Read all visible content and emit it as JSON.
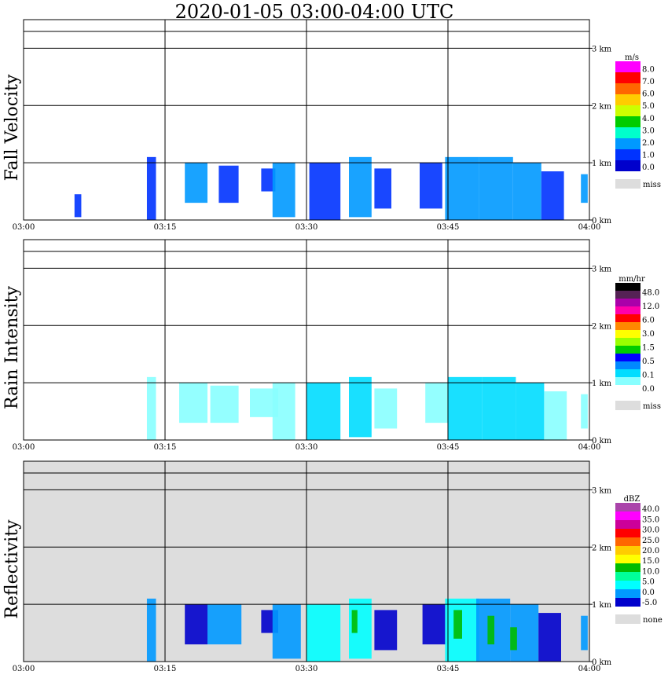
{
  "title": "2020-01-05   03:00-04:00 UTC",
  "chart_data": [
    {
      "type": "heatmap",
      "ylabel": "Fall Velocity",
      "x_ticks": [
        "03:00",
        "03:15",
        "03:30",
        "03:45",
        "04:00"
      ],
      "y_ticks": [
        "0 km",
        "1 km",
        "2 km",
        "3 km"
      ],
      "ylim": [
        0,
        3.5
      ],
      "legend": {
        "unit": "m/s",
        "labels": [
          "8.0",
          "7.0",
          "6.0",
          "5.0",
          "4.0",
          "3.0",
          "2.0",
          "1.0",
          "0.0"
        ],
        "colors": [
          "#ff00ff",
          "#ff0000",
          "#ff6600",
          "#ffcc00",
          "#ccff00",
          "#00cc00",
          "#00ffcc",
          "#0099ff",
          "#0033ff",
          "#0000cc"
        ],
        "missing_label": "miss",
        "missing_color": "#dddddd"
      },
      "background": "#ffffff",
      "echo_cells": [
        {
          "x": 0.09,
          "w": 0.012,
          "y0": 0.05,
          "y1": 0.45,
          "c": 8
        },
        {
          "x": 0.218,
          "w": 0.016,
          "y0": 0.0,
          "y1": 1.1,
          "c": 8
        },
        {
          "x": 0.285,
          "w": 0.04,
          "y0": 0.3,
          "y1": 1.0,
          "c": 7
        },
        {
          "x": 0.345,
          "w": 0.035,
          "y0": 0.3,
          "y1": 0.95,
          "c": 8
        },
        {
          "x": 0.42,
          "w": 0.025,
          "y0": 0.5,
          "y1": 0.9,
          "c": 8
        },
        {
          "x": 0.44,
          "w": 0.04,
          "y0": 0.05,
          "y1": 1.0,
          "c": 7
        },
        {
          "x": 0.505,
          "w": 0.055,
          "y0": 0.0,
          "y1": 1.0,
          "c": 8
        },
        {
          "x": 0.575,
          "w": 0.04,
          "y0": 0.05,
          "y1": 1.1,
          "c": 7
        },
        {
          "x": 0.62,
          "w": 0.03,
          "y0": 0.2,
          "y1": 0.9,
          "c": 8
        },
        {
          "x": 0.7,
          "w": 0.04,
          "y0": 0.2,
          "y1": 1.0,
          "c": 8
        },
        {
          "x": 0.745,
          "w": 0.06,
          "y0": 0.0,
          "y1": 1.1,
          "c": 7
        },
        {
          "x": 0.805,
          "w": 0.06,
          "y0": 0.0,
          "y1": 1.1,
          "c": 7
        },
        {
          "x": 0.865,
          "w": 0.05,
          "y0": 0.0,
          "y1": 1.0,
          "c": 7
        },
        {
          "x": 0.915,
          "w": 0.04,
          "y0": 0.0,
          "y1": 0.85,
          "c": 8
        },
        {
          "x": 0.985,
          "w": 0.012,
          "y0": 0.3,
          "y1": 0.8,
          "c": 7
        }
      ]
    },
    {
      "type": "heatmap",
      "ylabel": "Rain Intensity",
      "x_ticks": [
        "03:00",
        "03:15",
        "03:30",
        "03:45",
        "04:00"
      ],
      "y_ticks": [
        "0 km",
        "1 km",
        "2 km",
        "3 km"
      ],
      "ylim": [
        0,
        3.5
      ],
      "legend": {
        "unit": "mm/hr",
        "labels": [
          "48.0",
          "12.0",
          "6.0",
          "3.0",
          "1.5",
          "0.5",
          "0.1",
          "0.0"
        ],
        "colors": [
          "#000000",
          "#552255",
          "#aa00aa",
          "#ff00aa",
          "#ff0000",
          "#ff8800",
          "#ffff00",
          "#99ff00",
          "#00cc00",
          "#0000ff",
          "#0088ff",
          "#00ddff",
          "#88ffff",
          "#ffffff"
        ],
        "missing_label": "miss",
        "missing_color": "#dddddd"
      },
      "background": "#ffffff",
      "echo_cells": [
        {
          "x": 0.218,
          "w": 0.016,
          "y0": 0.0,
          "y1": 1.1,
          "c": 12
        },
        {
          "x": 0.275,
          "w": 0.05,
          "y0": 0.3,
          "y1": 1.0,
          "c": 12
        },
        {
          "x": 0.33,
          "w": 0.05,
          "y0": 0.3,
          "y1": 0.95,
          "c": 12
        },
        {
          "x": 0.4,
          "w": 0.05,
          "y0": 0.4,
          "y1": 0.9,
          "c": 12
        },
        {
          "x": 0.44,
          "w": 0.04,
          "y0": 0.0,
          "y1": 1.0,
          "c": 12
        },
        {
          "x": 0.5,
          "w": 0.06,
          "y0": 0.0,
          "y1": 1.0,
          "c": 11
        },
        {
          "x": 0.575,
          "w": 0.04,
          "y0": 0.05,
          "y1": 1.1,
          "c": 11
        },
        {
          "x": 0.62,
          "w": 0.04,
          "y0": 0.2,
          "y1": 0.9,
          "c": 12
        },
        {
          "x": 0.71,
          "w": 0.04,
          "y0": 0.3,
          "y1": 1.0,
          "c": 12
        },
        {
          "x": 0.75,
          "w": 0.06,
          "y0": 0.0,
          "y1": 1.1,
          "c": 11
        },
        {
          "x": 0.81,
          "w": 0.06,
          "y0": 0.0,
          "y1": 1.1,
          "c": 11
        },
        {
          "x": 0.87,
          "w": 0.05,
          "y0": 0.0,
          "y1": 1.0,
          "c": 11
        },
        {
          "x": 0.92,
          "w": 0.04,
          "y0": 0.0,
          "y1": 0.85,
          "c": 12
        },
        {
          "x": 0.985,
          "w": 0.012,
          "y0": 0.2,
          "y1": 0.8,
          "c": 12
        }
      ]
    },
    {
      "type": "heatmap",
      "ylabel": "Reflectivity",
      "x_ticks": [
        "03:00",
        "03:15",
        "03:30",
        "03:45",
        "04:00"
      ],
      "y_ticks": [
        "0 km",
        "1 km",
        "2 km",
        "3 km"
      ],
      "ylim": [
        0,
        3.5
      ],
      "legend": {
        "unit": "dBZ",
        "labels": [
          "40.0",
          "35.0",
          "30.0",
          "25.0",
          "20.0",
          "15.0",
          "10.0",
          "5.0",
          "0.0",
          "-5.0"
        ],
        "colors": [
          "#aa44aa",
          "#ff00ff",
          "#cc0099",
          "#ff0000",
          "#ff6600",
          "#ffcc00",
          "#ffff00",
          "#00bb00",
          "#00ff99",
          "#00ffff",
          "#0099ff",
          "#0000cc"
        ],
        "missing_label": "none",
        "missing_color": "#dddddd"
      },
      "background": "#dddddd",
      "echo_cells": [
        {
          "x": 0.218,
          "w": 0.016,
          "y0": 0.0,
          "y1": 1.1,
          "c": 10
        },
        {
          "x": 0.285,
          "w": 0.04,
          "y0": 0.3,
          "y1": 1.0,
          "c": 11
        },
        {
          "x": 0.325,
          "w": 0.06,
          "y0": 0.3,
          "y1": 1.0,
          "c": 10
        },
        {
          "x": 0.42,
          "w": 0.03,
          "y0": 0.5,
          "y1": 0.9,
          "c": 11
        },
        {
          "x": 0.44,
          "w": 0.05,
          "y0": 0.05,
          "y1": 1.0,
          "c": 10
        },
        {
          "x": 0.5,
          "w": 0.06,
          "y0": 0.0,
          "y1": 1.0,
          "c": 9
        },
        {
          "x": 0.575,
          "w": 0.04,
          "y0": 0.05,
          "y1": 1.1,
          "c": 9
        },
        {
          "x": 0.62,
          "w": 0.04,
          "y0": 0.2,
          "y1": 0.9,
          "c": 11
        },
        {
          "x": 0.705,
          "w": 0.04,
          "y0": 0.3,
          "y1": 1.0,
          "c": 11
        },
        {
          "x": 0.745,
          "w": 0.06,
          "y0": 0.0,
          "y1": 1.1,
          "c": 9
        },
        {
          "x": 0.8,
          "w": 0.06,
          "y0": 0.0,
          "y1": 1.1,
          "c": 10
        },
        {
          "x": 0.86,
          "w": 0.05,
          "y0": 0.0,
          "y1": 1.0,
          "c": 10
        },
        {
          "x": 0.91,
          "w": 0.04,
          "y0": 0.0,
          "y1": 0.85,
          "c": 11
        },
        {
          "x": 0.985,
          "w": 0.012,
          "y0": 0.2,
          "y1": 0.8,
          "c": 10
        },
        {
          "x": 0.76,
          "w": 0.015,
          "y0": 0.4,
          "y1": 0.9,
          "c": 7
        },
        {
          "x": 0.82,
          "w": 0.012,
          "y0": 0.3,
          "y1": 0.8,
          "c": 7
        },
        {
          "x": 0.86,
          "w": 0.012,
          "y0": 0.2,
          "y1": 0.6,
          "c": 7
        },
        {
          "x": 0.58,
          "w": 0.01,
          "y0": 0.5,
          "y1": 0.9,
          "c": 7
        }
      ]
    }
  ]
}
